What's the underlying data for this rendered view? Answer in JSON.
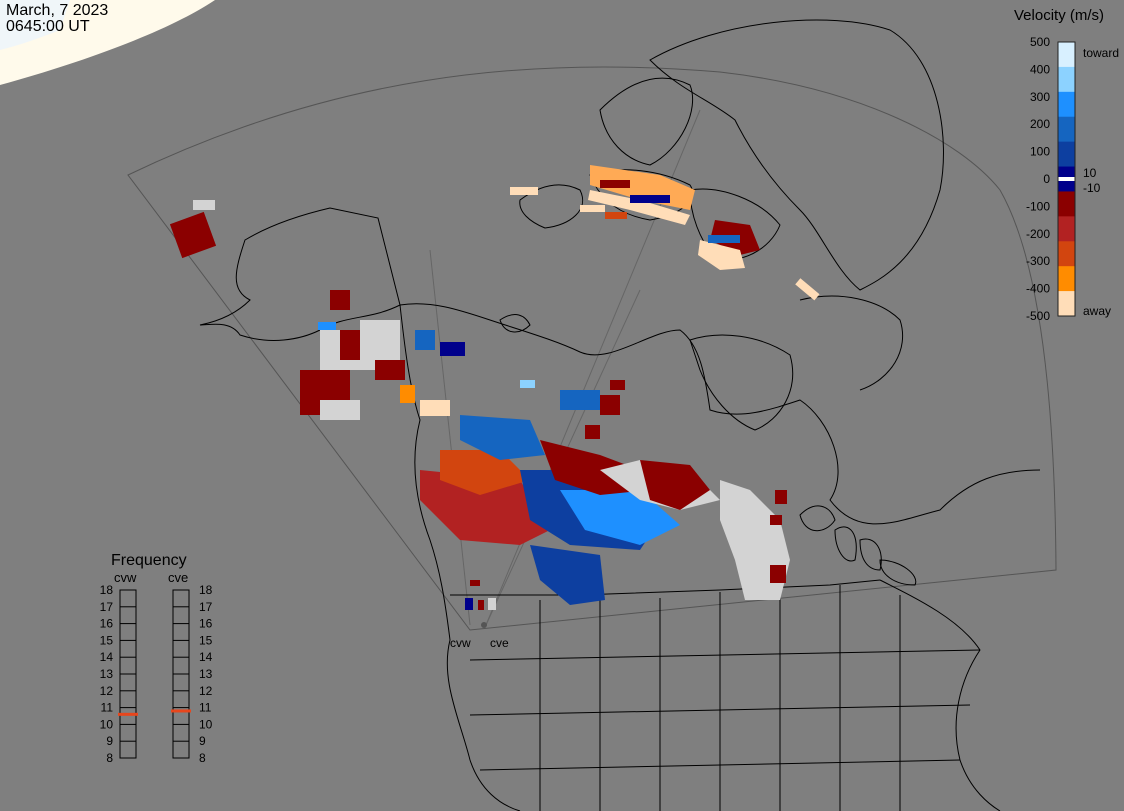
{
  "header": {
    "date": "March, 7 2023",
    "time": "0645:00 UT"
  },
  "velocity_scale": {
    "title": "Velocity (m/s)",
    "ticks": [
      "500",
      "400",
      "300",
      "200",
      "100",
      "0",
      "-100",
      "-200",
      "-300",
      "-400",
      "-500"
    ],
    "inner_labels": [
      "10",
      "-10"
    ],
    "toward_label": "toward",
    "away_label": "away",
    "colors": [
      "#d8f0ff",
      "#8cd2ff",
      "#1e90ff",
      "#1565c0",
      "#0d3fa0",
      "#00008b",
      "#8b0000",
      "#b22222",
      "#d2450f",
      "#ff8c00",
      "#ffddb8"
    ]
  },
  "frequency": {
    "title": "Frequency",
    "radars": [
      "cvw",
      "cve"
    ],
    "ticks": [
      "18",
      "17",
      "16",
      "15",
      "14",
      "13",
      "12",
      "11",
      "10",
      "9",
      "8"
    ],
    "cvw_value": 10.6,
    "cve_value": 10.8,
    "marker_color": "#e8461c"
  },
  "map": {
    "radar_labels": [
      "cvw",
      "cve"
    ],
    "colors": {
      "background": "#7f7f7f",
      "coastline": "#000000",
      "ground_scatter": "#d3d3d3",
      "daylight": "#fffaeb"
    }
  }
}
